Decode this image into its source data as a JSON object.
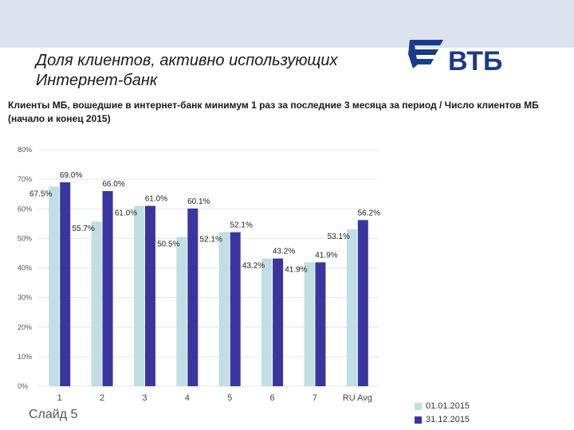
{
  "slide": {
    "title_line1": "Доля клиентов, активно использующих",
    "title_line2": "Интернет-банк",
    "subtitle": "Клиенты МБ, вошедшие в интернет-банк минимум 1 раз за последние 3 месяца за период / Число клиентов МБ (начало и конец 2015)",
    "slide_number": "Слайд 5",
    "logo_text": "ВТБ"
  },
  "colors": {
    "band": "#dce3ef",
    "logo": "#1a3b8c",
    "series_start": "#bfdfe3",
    "series_end": "#3a36a0"
  },
  "chart_data": {
    "type": "bar",
    "categories": [
      "1",
      "2",
      "3",
      "4",
      "5",
      "6",
      "7",
      "RU Avg"
    ],
    "series": [
      {
        "name": "01.01.2015",
        "values": [
          67.5,
          55.7,
          61.0,
          50.5,
          52.1,
          43.2,
          41.9,
          53.1
        ],
        "labels": [
          "67.5%",
          "55.7%",
          "61.0%",
          "50.5%",
          "52.1%",
          "43.2%",
          "41.9%",
          "53.1%"
        ]
      },
      {
        "name": "31.12.2015",
        "values": [
          69.0,
          66.0,
          61.0,
          60.1,
          52.1,
          43.2,
          41.9,
          56.2
        ],
        "labels": [
          "69.0%",
          "66.0%",
          "61.0%",
          "60.1%",
          "52.1%",
          "43.2%",
          "41.9%",
          "56.2%"
        ]
      }
    ],
    "ylim": [
      0,
      80
    ],
    "yticks": [
      0,
      10,
      20,
      30,
      40,
      50,
      60,
      70,
      80
    ],
    "ytick_labels": [
      "0%",
      "10%",
      "20%",
      "30%",
      "40%",
      "50%",
      "60%",
      "70%",
      "80%"
    ],
    "grid": true,
    "legend": "bottom-right",
    "title": "",
    "xlabel": "",
    "ylabel": ""
  }
}
